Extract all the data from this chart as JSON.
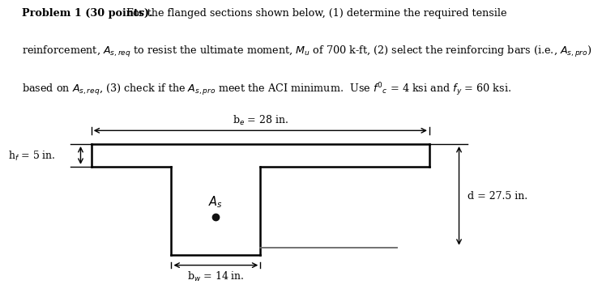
{
  "bg_color": "#ffffff",
  "line_color": "#000000",
  "label_be": "b$_e$ = 28 in.",
  "label_hf": "h$_f$ = 5 in.",
  "label_d": "d = 27.5 in.",
  "label_bw": "b$_w$ = 14 in.",
  "label_As": "$A_s$",
  "text_line1_bold": "Problem 1 (30 points).",
  "text_line1_normal": "  For the flanged sections shown below, (1) determine the required tensile",
  "text_line2": "reinforcement, $A_{s,req}$ to resist the ultimate moment, $M_u$ of 700 k-ft, (2) select the reinforcing bars (i.e., $A_{s,pro}$)",
  "text_line3": "based on $A_{s,req}$, (3) check if the $A_{s,pro}$ meet the ACI minimum.  Use $f'_c$ = 4 ksi and $f_y$ = 60 ksi."
}
